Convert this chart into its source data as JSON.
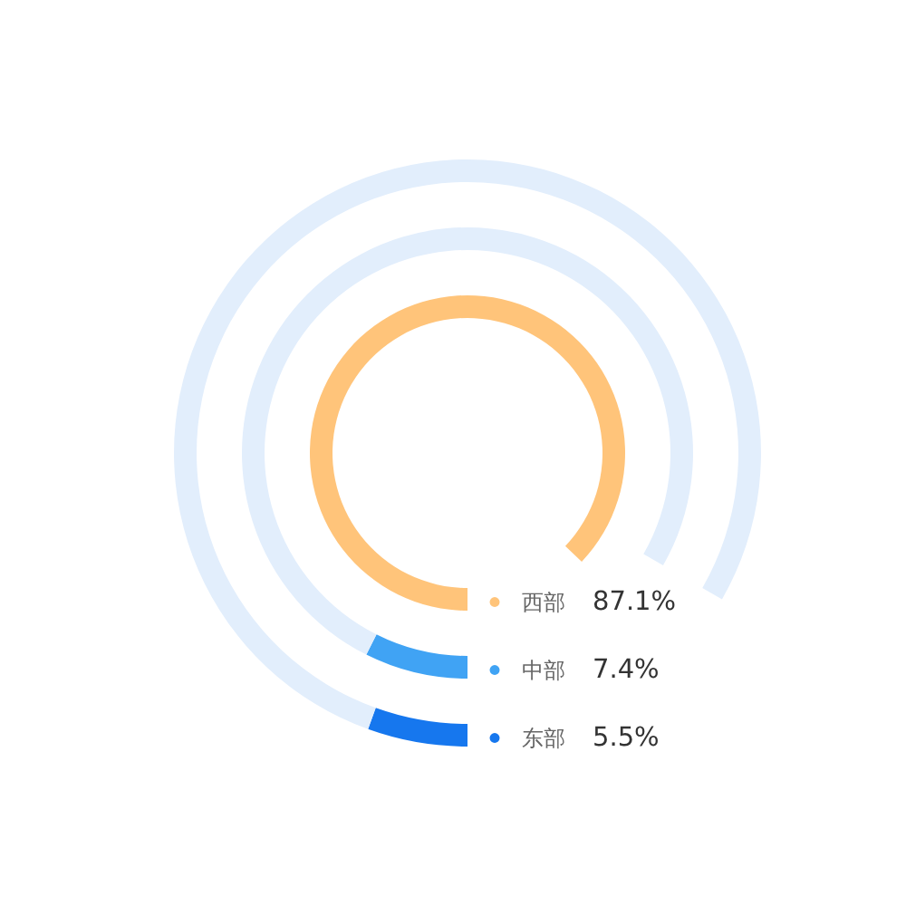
{
  "chart_data": {
    "type": "donut",
    "categories": [
      "西部",
      "中部",
      "东部",
      null
    ],
    "colors": [
      "#ffc47a",
      "#40a3f4",
      "#1677ee",
      "#e2eefc"
    ],
    "series": [
      {
        "values": [
          87.1,
          null,
          null,
          null
        ],
        "value_labels": [
          "87.1%",
          null,
          null,
          null
        ]
      },
      {
        "values": [
          null,
          7.4,
          null,
          75.9
        ],
        "value_labels": [
          null,
          "7.4%",
          null,
          null
        ]
      },
      {
        "values": [
          null,
          null,
          5.5,
          77.8
        ],
        "value_labels": [
          null,
          null,
          "5.5%",
          null
        ]
      }
    ],
    "legend": "bottom right"
  }
}
